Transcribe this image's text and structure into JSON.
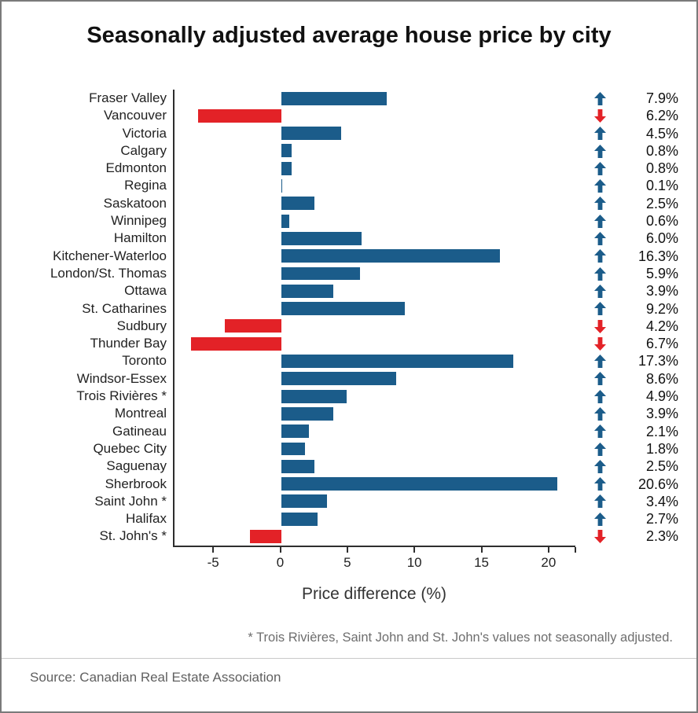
{
  "title": "Seasonally adjusted average house price by city",
  "footnote": "* Trois Rivières, Saint John and St. John's values not seasonally adjusted.",
  "source": "Source: Canadian Real Estate Association",
  "colors": {
    "positive": "#1b5c8a",
    "negative": "#e32227",
    "axis": "#2e2e2e"
  },
  "chart_data": {
    "type": "bar",
    "orientation": "horizontal",
    "title": "Seasonally adjusted average house price by city",
    "xlabel": "Price difference (%)",
    "xlim": [
      -8,
      22
    ],
    "xticks": [
      -5,
      0,
      5,
      10,
      15,
      20
    ],
    "grid": false,
    "categories": [
      "Fraser Valley",
      "Vancouver",
      "Victoria",
      "Calgary",
      "Edmonton",
      "Regina",
      "Saskatoon",
      "Winnipeg",
      "Hamilton",
      "Kitchener-Waterloo",
      "London/St. Thomas",
      "Ottawa",
      "St. Catharines",
      "Sudbury",
      "Thunder Bay",
      "Toronto",
      "Windsor-Essex",
      "Trois Rivières *",
      "Montreal",
      "Gatineau",
      "Quebec City",
      "Saguenay",
      "Sherbrook",
      "Saint John *",
      "Halifax",
      "St. John's *"
    ],
    "values": [
      7.9,
      -6.2,
      4.5,
      0.8,
      0.8,
      0.1,
      2.5,
      0.6,
      6.0,
      16.3,
      5.9,
      3.9,
      9.2,
      -4.2,
      -6.7,
      17.3,
      8.6,
      4.9,
      3.9,
      2.1,
      1.8,
      2.5,
      20.6,
      3.4,
      2.7,
      -2.3
    ],
    "value_labels": [
      "7.9%",
      "6.2%",
      "4.5%",
      "0.8%",
      "0.8%",
      "0.1%",
      "2.5%",
      "0.6%",
      "6.0%",
      "16.3%",
      "5.9%",
      "3.9%",
      "9.2%",
      "4.2%",
      "6.7%",
      "17.3%",
      "8.6%",
      "4.9%",
      "3.9%",
      "2.1%",
      "1.8%",
      "2.5%",
      "20.6%",
      "3.4%",
      "2.7%",
      "2.3%"
    ],
    "directions": [
      "up",
      "down",
      "up",
      "up",
      "up",
      "up",
      "up",
      "up",
      "up",
      "up",
      "up",
      "up",
      "up",
      "down",
      "down",
      "up",
      "up",
      "up",
      "up",
      "up",
      "up",
      "up",
      "up",
      "up",
      "up",
      "down"
    ]
  }
}
